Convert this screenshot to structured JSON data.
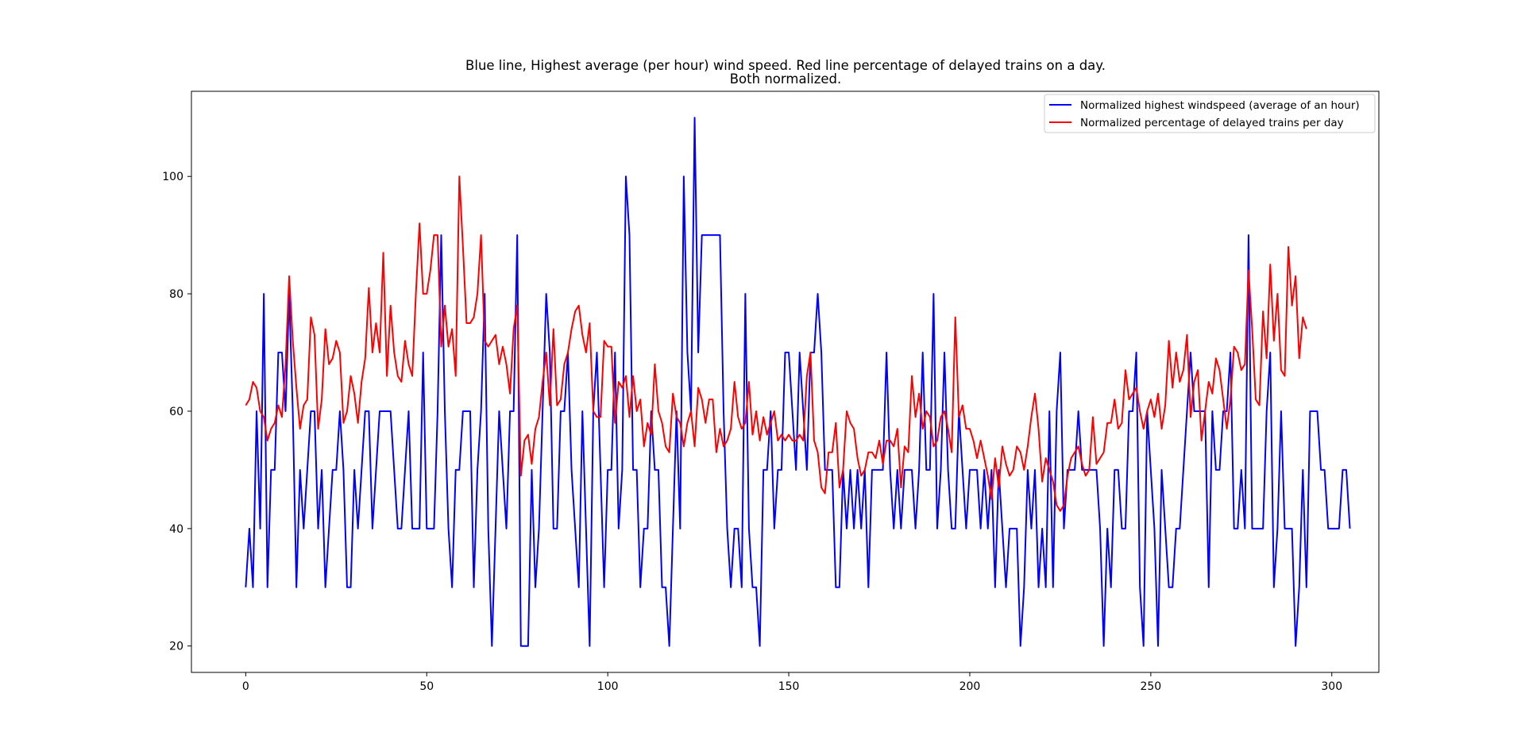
{
  "chart_data": {
    "type": "line",
    "title": [
      "Blue line, Highest average (per hour) wind speed. Red line percentage of delayed trains on a day.",
      "Both normalized."
    ],
    "xlabel": "",
    "ylabel": "",
    "xlim": [
      -15,
      313
    ],
    "ylim": [
      15.5,
      114.5
    ],
    "xticks": [
      0,
      50,
      100,
      150,
      200,
      250,
      300
    ],
    "yticks": [
      20,
      40,
      60,
      80,
      100
    ],
    "grid": false,
    "legend_placement": "top-right",
    "series": [
      {
        "name": "Normalized highest windspeed (average of an hour)",
        "color": "#0000ff",
        "values": [
          30,
          40,
          30,
          60,
          40,
          80,
          30,
          50,
          50,
          70,
          70,
          60,
          80,
          60,
          30,
          50,
          40,
          50,
          60,
          60,
          40,
          50,
          30,
          40,
          50,
          50,
          60,
          50,
          30,
          30,
          50,
          40,
          50,
          60,
          60,
          40,
          50,
          60,
          60,
          60,
          60,
          50,
          40,
          40,
          50,
          60,
          40,
          40,
          40,
          70,
          40,
          40,
          40,
          60,
          90,
          60,
          40,
          30,
          50,
          50,
          60,
          60,
          60,
          30,
          50,
          60,
          80,
          40,
          20,
          40,
          60,
          50,
          40,
          60,
          60,
          90,
          20,
          20,
          20,
          50,
          30,
          40,
          60,
          80,
          70,
          40,
          40,
          60,
          60,
          70,
          50,
          40,
          30,
          60,
          40,
          20,
          60,
          70,
          50,
          30,
          50,
          50,
          70,
          40,
          50,
          100,
          90,
          50,
          50,
          30,
          40,
          40,
          60,
          50,
          50,
          30,
          30,
          20,
          40,
          60,
          40,
          100,
          70,
          60,
          110,
          70,
          90,
          90,
          90,
          90,
          90,
          90,
          60,
          40,
          30,
          40,
          40,
          30,
          80,
          40,
          30,
          30,
          20,
          50,
          50,
          60,
          40,
          50,
          50,
          70,
          70,
          60,
          50,
          70,
          60,
          50,
          70,
          70,
          80,
          70,
          50,
          50,
          50,
          30,
          30,
          50,
          40,
          50,
          40,
          50,
          40,
          50,
          30,
          50,
          50,
          50,
          50,
          70,
          50,
          40,
          50,
          40,
          50,
          50,
          50,
          40,
          50,
          70,
          50,
          50,
          80,
          40,
          50,
          70,
          50,
          40,
          40,
          60,
          50,
          40,
          50,
          50,
          50,
          40,
          50,
          40,
          50,
          30,
          50,
          40,
          30,
          40,
          40,
          40,
          20,
          30,
          50,
          40,
          50,
          30,
          40,
          30,
          60,
          30,
          60,
          70,
          40,
          50,
          50,
          50,
          60,
          50,
          50,
          50,
          50,
          50,
          40,
          20,
          40,
          30,
          50,
          50,
          40,
          40,
          60,
          60,
          70,
          30,
          20,
          60,
          50,
          40,
          20,
          50,
          40,
          30,
          30,
          40,
          40,
          50,
          60,
          70,
          60,
          60,
          60,
          60,
          30,
          60,
          50,
          50,
          60,
          60,
          70,
          40,
          40,
          50,
          40,
          90,
          40,
          40,
          40,
          40,
          60,
          70,
          30,
          40,
          60,
          40,
          40,
          40,
          20,
          30,
          50,
          30,
          60,
          60,
          60,
          50,
          50,
          40,
          40,
          40,
          40,
          50,
          50,
          40
        ]
      },
      {
        "name": "Normalized percentage of delayed trains per day",
        "color": "#ff0000",
        "values": [
          61,
          62,
          65,
          64,
          60,
          59,
          55,
          57,
          58,
          61,
          59,
          68,
          83,
          72,
          64,
          57,
          61,
          62,
          76,
          73,
          57,
          62,
          74,
          68,
          69,
          72,
          70,
          58,
          60,
          66,
          63,
          58,
          65,
          69,
          81,
          70,
          75,
          70,
          87,
          66,
          78,
          70,
          66,
          65,
          72,
          68,
          66,
          80,
          92,
          80,
          80,
          84,
          90,
          90,
          71,
          78,
          71,
          74,
          66,
          100,
          88,
          75,
          75,
          76,
          80,
          90,
          72,
          71,
          72,
          73,
          68,
          71,
          68,
          63,
          74,
          78,
          49,
          55,
          56,
          51,
          57,
          59,
          65,
          70,
          61,
          74,
          61,
          62,
          68,
          70,
          74,
          77,
          78,
          73,
          70,
          75,
          60,
          59,
          59,
          72,
          71,
          71,
          58,
          65,
          64,
          66,
          59,
          66,
          60,
          62,
          54,
          58,
          56,
          68,
          60,
          58,
          54,
          53,
          63,
          59,
          58,
          54,
          58,
          60,
          54,
          64,
          62,
          58,
          62,
          62,
          53,
          57,
          54,
          55,
          57,
          65,
          59,
          57,
          58,
          65,
          56,
          60,
          55,
          59,
          56,
          58,
          60,
          55,
          56,
          55,
          56,
          55,
          55,
          56,
          55,
          66,
          70,
          55,
          53,
          47,
          46,
          53,
          53,
          58,
          47,
          50,
          60,
          58,
          57,
          52,
          49,
          50,
          53,
          53,
          52,
          55,
          51,
          55,
          55,
          54,
          57,
          47,
          54,
          53,
          66,
          59,
          63,
          57,
          60,
          59,
          54,
          55,
          59,
          60,
          57,
          53,
          76,
          59,
          61,
          57,
          57,
          55,
          52,
          55,
          52,
          49,
          45,
          52,
          47,
          54,
          51,
          49,
          50,
          54,
          53,
          50,
          54,
          59,
          63,
          57,
          48,
          52,
          50,
          48,
          44,
          43,
          44,
          49,
          52,
          53,
          54,
          51,
          49,
          50,
          59,
          51,
          52,
          53,
          58,
          58,
          62,
          57,
          58,
          67,
          62,
          63,
          64,
          60,
          57,
          60,
          62,
          59,
          63,
          57,
          61,
          72,
          64,
          70,
          65,
          67,
          73,
          59,
          65,
          67,
          55,
          60,
          65,
          63,
          69,
          67,
          62,
          57,
          62,
          71,
          70,
          67,
          68,
          84,
          74,
          62,
          61,
          77,
          69,
          85,
          72,
          80,
          67,
          66,
          88,
          78,
          83,
          69,
          76,
          74
        ]
      }
    ]
  }
}
